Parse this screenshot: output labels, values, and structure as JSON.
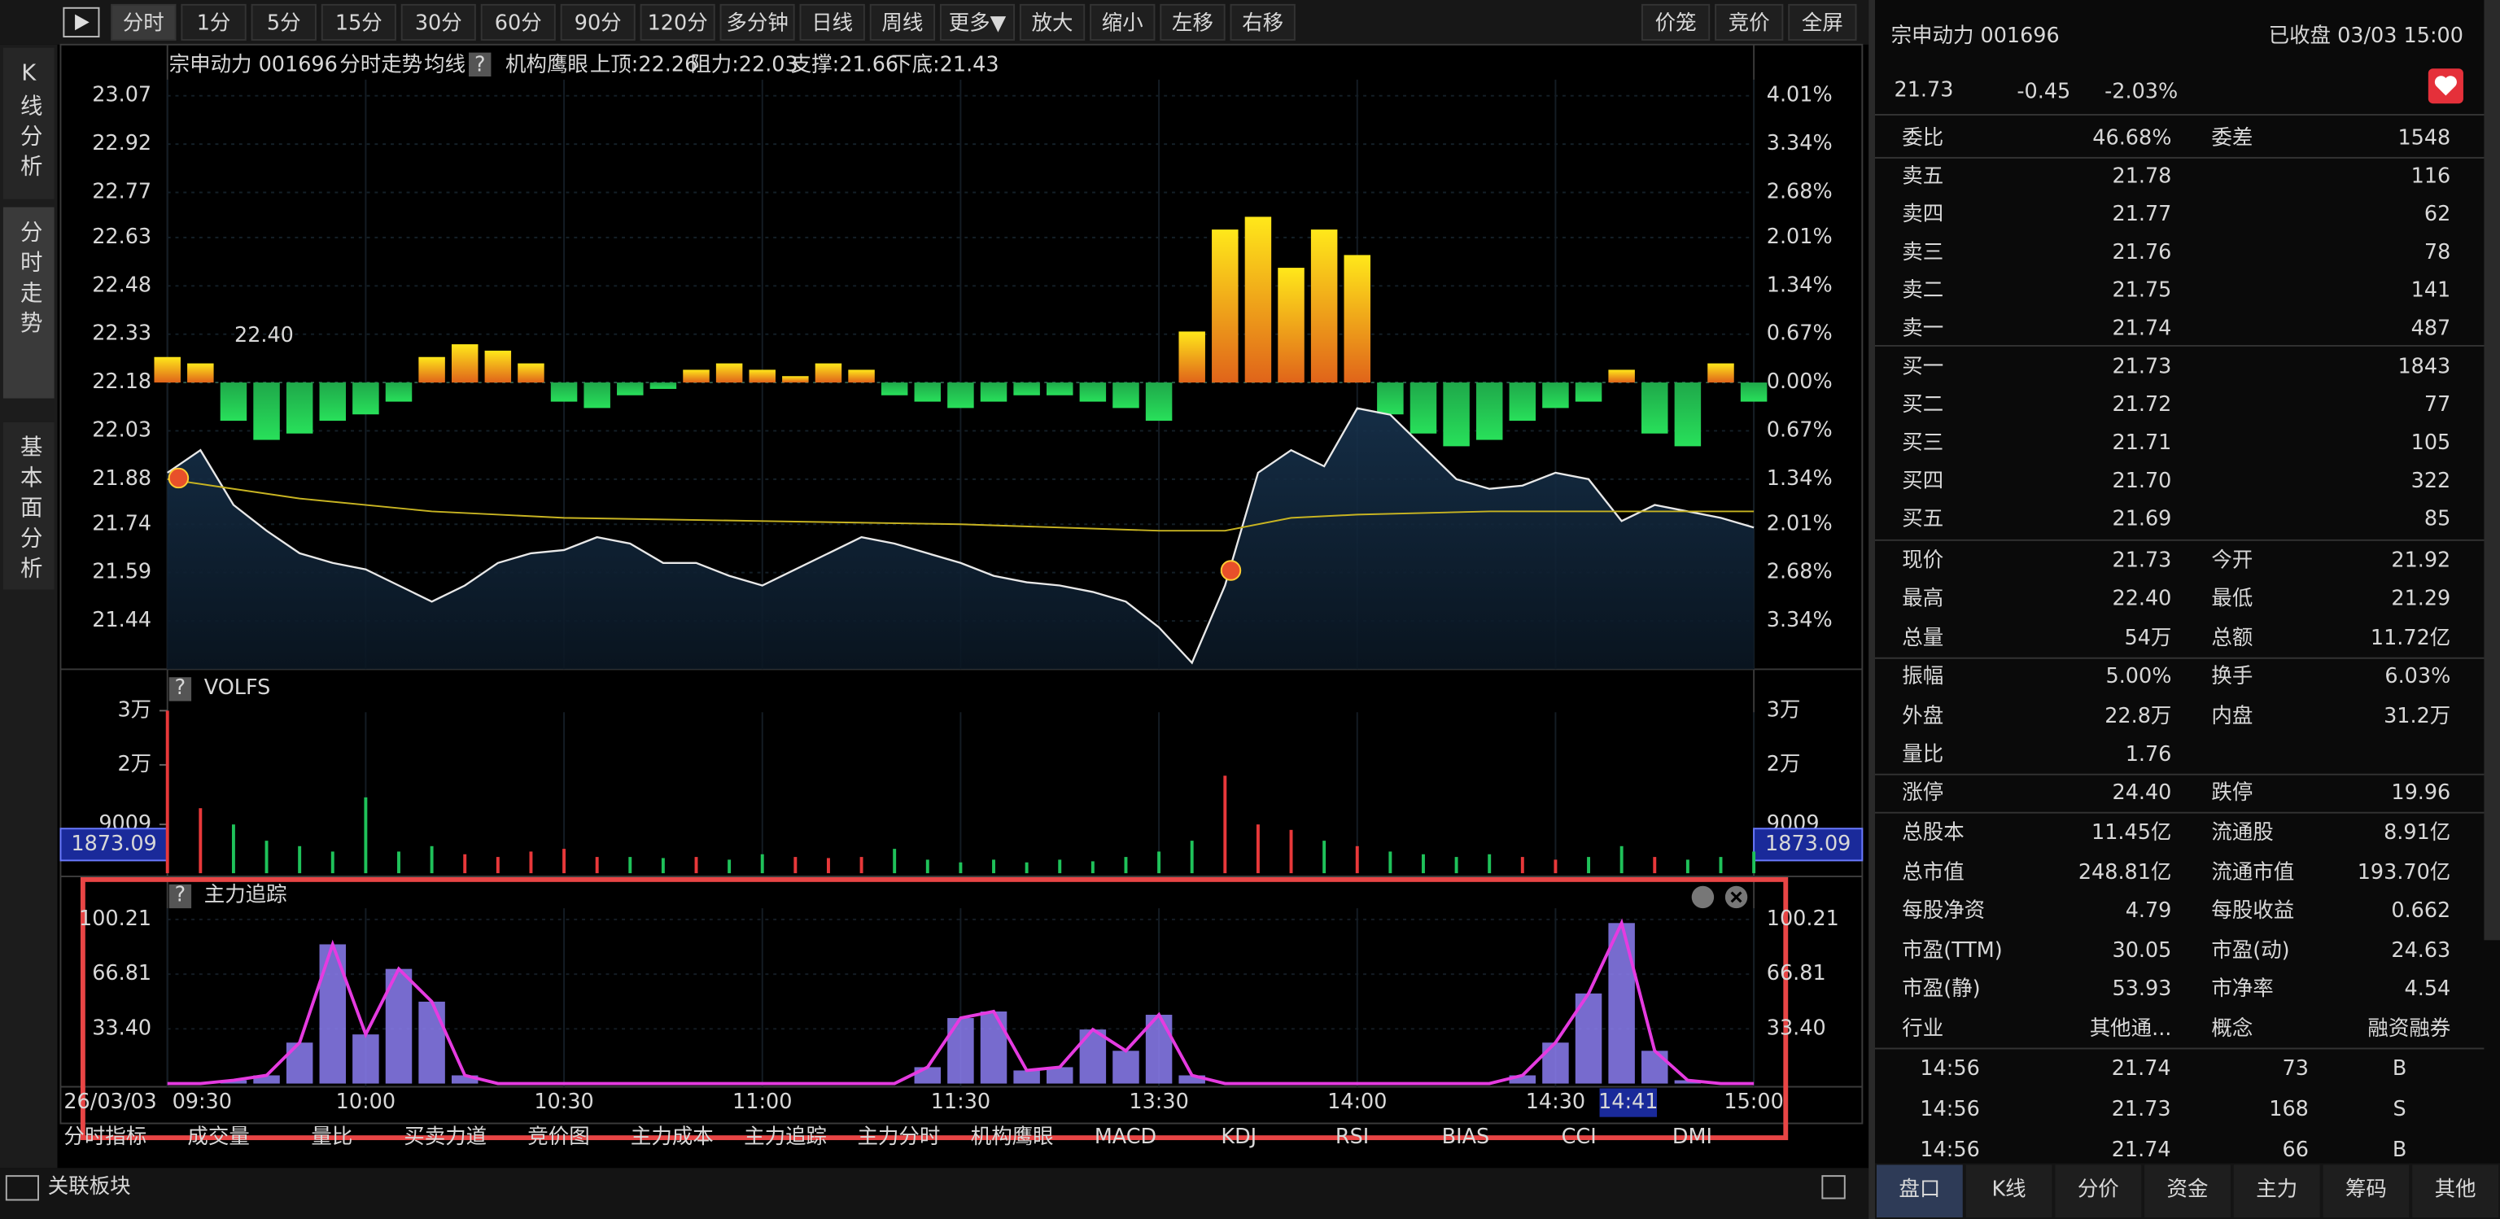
{
  "toolbar": {
    "buttons": [
      "分时",
      "1分",
      "5分",
      "15分",
      "30分",
      "60分",
      "90分",
      "120分",
      "多分钟",
      "日线",
      "周线",
      "更多▼",
      "放大",
      "缩小",
      "左移",
      "右移"
    ],
    "right_buttons": [
      "价笼",
      "竞价",
      "全屏"
    ]
  },
  "side_tabs": [
    "K线分析",
    "分时走势",
    "基本面分析"
  ],
  "chart_header": {
    "name": "宗申动力 001696",
    "mode": "分时走势",
    "ma": "均线",
    "help": "?",
    "eye": "机构鹰眼",
    "levels": [
      {
        "text": "上顶:22.26",
        "color": "#2fc24a"
      },
      {
        "text": "阻力:22.03",
        "color": "#29b6c8"
      },
      {
        "text": "支撑:21.66",
        "color": "#2fa58a"
      },
      {
        "text": "下底:21.43",
        "color": "#8a8a8a"
      }
    ]
  },
  "chart_data": {
    "type": "line",
    "xlim": [
      0,
      240
    ],
    "ylim": [
      21.29,
      23.12
    ],
    "yticks": [
      23.07,
      22.92,
      22.77,
      22.63,
      22.48,
      22.33,
      22.18,
      22.03,
      21.88,
      21.74,
      21.59,
      21.44
    ],
    "pct_ticks": [
      {
        "value": 4.01,
        "label": "4.01%"
      },
      {
        "value": 3.34,
        "label": "3.34%"
      },
      {
        "value": 2.68,
        "label": "2.68%"
      },
      {
        "value": 2.01,
        "label": "2.01%"
      },
      {
        "value": 1.34,
        "label": "1.34%"
      },
      {
        "value": 0.67,
        "label": "0.67%"
      },
      {
        "value": 0,
        "label": "0.00%"
      },
      {
        "value": -0.67,
        "label": "0.67%"
      },
      {
        "value": -1.34,
        "label": "1.34%"
      },
      {
        "value": -2.01,
        "label": "2.01%"
      },
      {
        "value": -2.68,
        "label": "2.68%"
      },
      {
        "value": -3.34,
        "label": "3.34%"
      }
    ],
    "x": [
      0,
      5,
      10,
      15,
      20,
      25,
      30,
      35,
      40,
      45,
      50,
      55,
      60,
      65,
      70,
      75,
      80,
      85,
      90,
      95,
      100,
      105,
      110,
      115,
      120,
      125,
      130,
      135,
      140,
      145,
      150,
      155,
      160,
      165,
      170,
      175,
      180,
      185,
      190,
      195,
      200,
      205,
      210,
      215,
      220,
      225,
      230,
      235,
      240
    ],
    "series": [
      {
        "name": "价格",
        "color": "#e8e8e8",
        "values": [
          21.9,
          21.97,
          21.8,
          21.72,
          21.65,
          21.62,
          21.6,
          21.55,
          21.5,
          21.55,
          21.62,
          21.65,
          21.66,
          21.7,
          21.68,
          21.62,
          21.62,
          21.58,
          21.55,
          21.6,
          21.65,
          21.7,
          21.68,
          21.65,
          21.62,
          21.58,
          21.56,
          21.55,
          21.53,
          21.5,
          21.42,
          21.31,
          21.55,
          21.9,
          21.97,
          21.92,
          22.1,
          22.08,
          21.98,
          21.88,
          21.85,
          21.86,
          21.9,
          21.88,
          21.75,
          21.8,
          21.78,
          21.76,
          21.73
        ]
      }
    ],
    "avg": {
      "color": "#c8b422",
      "x": [
        0,
        10,
        20,
        40,
        60,
        90,
        120,
        150,
        160,
        170,
        180,
        200,
        240
      ],
      "values": [
        21.88,
        21.85,
        21.82,
        21.78,
        21.76,
        21.75,
        21.74,
        21.72,
        21.72,
        21.76,
        21.77,
        21.78,
        21.78
      ]
    },
    "flow": [
      4,
      3,
      -6,
      -9,
      -8,
      -6,
      -5,
      -3,
      4,
      6,
      5,
      3,
      -3,
      -4,
      -2,
      -1,
      2,
      3,
      2,
      1,
      3,
      2,
      -2,
      -3,
      -4,
      -3,
      -2,
      -2,
      -3,
      -4,
      -6,
      8,
      24,
      26,
      18,
      24,
      20,
      -5,
      -8,
      -10,
      -9,
      -6,
      -4,
      -3,
      2,
      -8,
      -10,
      3,
      -3
    ],
    "annotation": "22.40",
    "time_labels": [
      {
        "value": 0,
        "label": "09:30"
      },
      {
        "value": 30,
        "label": "10:00"
      },
      {
        "value": 60,
        "label": "10:30"
      },
      {
        "value": 90,
        "label": "11:00"
      },
      {
        "value": 120,
        "label": "11:30"
      },
      {
        "value": 150,
        "label": "13:30"
      },
      {
        "value": 180,
        "label": "14:00"
      },
      {
        "value": 210,
        "label": "14:30"
      },
      {
        "value": 240,
        "label": "15:00"
      }
    ],
    "cursor": {
      "value": 221,
      "label": "14:41"
    },
    "date": "26/03/03"
  },
  "volume_panel": {
    "title": "VOLFS",
    "help": "?",
    "ylim": [
      0,
      30000
    ],
    "yticks": [
      {
        "value": 30000,
        "label": "3万"
      },
      {
        "value": 20000,
        "label": "2万"
      },
      9009
    ],
    "cursor_value": "1873.09",
    "values": [
      30000,
      12000,
      9000,
      6000,
      5000,
      4000,
      14000,
      4000,
      5000,
      3500,
      3000,
      4000,
      4500,
      3000,
      3000,
      2800,
      3000,
      2500,
      3500,
      3000,
      2800,
      3000,
      4500,
      2500,
      2000,
      2500,
      2000,
      2500,
      2200,
      3000,
      4000,
      6000,
      18000,
      9000,
      8000,
      6000,
      5000,
      4000,
      3500,
      3000,
      3500,
      3000,
      2500,
      3000,
      5000,
      3000,
      2500,
      3000,
      4000
    ]
  },
  "main_force_panel": {
    "title": "主力追踪",
    "help": "?",
    "ylim": [
      0,
      100.21
    ],
    "yticks": [
      100.21,
      66.81,
      {
        "value": 33.4,
        "label": "33.40"
      }
    ],
    "color": "#8c7ef2",
    "line_color": "#e53be0",
    "values": [
      0,
      0,
      2,
      5,
      25,
      85,
      30,
      70,
      50,
      5,
      0,
      0,
      0,
      0,
      0,
      0,
      0,
      0,
      0,
      0,
      0,
      0,
      0,
      10,
      40,
      44,
      8,
      10,
      33,
      20,
      42,
      5,
      0,
      0,
      0,
      0,
      0,
      0,
      0,
      0,
      0,
      5,
      25,
      55,
      98,
      20,
      2,
      0,
      0
    ]
  },
  "indicator_tabs": {
    "items": [
      "分时指标",
      "成交量",
      "量比",
      "买卖力道",
      "竞价图",
      "主力成本",
      "主力追踪",
      "主力分时",
      "机构鹰眼",
      "MACD",
      "KDJ",
      "RSI",
      "BIAS",
      "CCI",
      "DMI"
    ],
    "highlighted": [
      1,
      6,
      8
    ]
  },
  "bottom_bar": {
    "label": "关联板块"
  },
  "quote": {
    "title": "宗申动力 001696",
    "status": "已收盘 03/03 15:00",
    "price": "21.73",
    "change": "-0.45",
    "change_pct": "-2.03%",
    "summary": [
      [
        {
          "text": "委比"
        },
        {
          "text": "46.68%",
          "color": "#ff3b3b"
        },
        {
          "text": "委差"
        },
        {
          "text": "1548",
          "color": "#ff3b3b"
        }
      ]
    ],
    "order_book": [
      [
        {
          "text": "卖五"
        },
        {
          "text": "21.78",
          "color": "#19d45a"
        },
        {
          "text": "116"
        }
      ],
      [
        {
          "text": "卖四"
        },
        {
          "text": "21.77",
          "color": "#19d45a"
        },
        {
          "text": "62"
        }
      ],
      [
        {
          "text": "卖三"
        },
        {
          "text": "21.76",
          "color": "#19d45a"
        },
        {
          "text": "78"
        }
      ],
      [
        {
          "text": "卖二"
        },
        {
          "text": "21.75",
          "color": "#19d45a"
        },
        {
          "text": "141"
        }
      ],
      [
        {
          "text": "卖一"
        },
        {
          "text": "21.74",
          "color": "#19d45a"
        },
        {
          "text": "487"
        }
      ],
      [
        {
          "text": "买一"
        },
        {
          "text": "21.73",
          "color": "#19d45a"
        },
        {
          "text": "1843"
        }
      ],
      [
        {
          "text": "买二"
        },
        {
          "text": "21.72",
          "color": "#19d45a"
        },
        {
          "text": "77"
        }
      ],
      [
        {
          "text": "买三"
        },
        {
          "text": "21.71",
          "color": "#19d45a"
        },
        {
          "text": "105"
        }
      ],
      [
        {
          "text": "买四"
        },
        {
          "text": "21.70",
          "color": "#19d45a"
        },
        {
          "text": "322"
        }
      ],
      [
        {
          "text": "买五"
        },
        {
          "text": "21.69",
          "color": "#19d45a"
        },
        {
          "text": "85"
        }
      ]
    ],
    "stats": [
      [
        {
          "text": "现价"
        },
        {
          "text": "21.73",
          "color": "#19d45a"
        },
        {
          "text": "今开"
        },
        {
          "text": "21.92",
          "color": "#19d45a"
        }
      ],
      [
        {
          "text": "最高"
        },
        {
          "text": "22.40",
          "color": "#ff3b3b"
        },
        {
          "text": "最低"
        },
        {
          "text": "21.29",
          "color": "#19d45a"
        }
      ],
      [
        {
          "text": "总量"
        },
        {
          "text": "54万"
        },
        {
          "text": "总额"
        },
        {
          "text": "11.72亿"
        }
      ],
      [
        {
          "text": "振幅"
        },
        {
          "text": "5.00%",
          "color": "#ff3b3b"
        },
        {
          "text": "换手"
        },
        {
          "text": "6.03%"
        }
      ],
      [
        {
          "text": "外盘"
        },
        {
          "text": "22.8万",
          "color": "#ff3b3b"
        },
        {
          "text": "内盘"
        },
        {
          "text": "31.2万",
          "color": "#19d45a"
        }
      ],
      [
        {
          "text": "量比"
        },
        {
          "text": "1.76"
        }
      ],
      [
        {
          "text": "涨停"
        },
        {
          "text": "24.40",
          "color": "#ff3b3b"
        },
        {
          "text": "跌停"
        },
        {
          "text": "19.96",
          "color": "#19d45a"
        }
      ],
      [
        {
          "text": "总股本"
        },
        {
          "text": "11.45亿"
        },
        {
          "text": "流通股"
        },
        {
          "text": "8.91亿"
        }
      ],
      [
        {
          "text": "总市值"
        },
        {
          "text": "248.81亿"
        },
        {
          "text": "流通市值"
        },
        {
          "text": "193.70亿"
        }
      ],
      [
        {
          "text": "每股净资"
        },
        {
          "text": "4.79"
        },
        {
          "text": "每股收益"
        },
        {
          "text": "0.662"
        }
      ],
      [
        {
          "text": "市盈(TTM)"
        },
        {
          "text": "30.05"
        },
        {
          "text": "市盈(动)"
        },
        {
          "text": "24.63"
        }
      ],
      [
        {
          "text": "市盈(静)"
        },
        {
          "text": "53.93"
        },
        {
          "text": "市净率"
        },
        {
          "text": "4.54"
        }
      ],
      [
        {
          "text": "行业",
          "color": "#f0a020"
        },
        {
          "text": "其他通..."
        },
        {
          "text": "概念",
          "color": "#f0a020"
        },
        {
          "text": "融资融券"
        }
      ]
    ],
    "trades": [
      [
        {
          "text": "14:56"
        },
        {
          "text": "21.74",
          "color": "#19d45a"
        },
        {
          "text": "73"
        },
        {
          "text": "B",
          "color": "#ff3b3b"
        }
      ],
      [
        {
          "text": "14:56"
        },
        {
          "text": "21.73",
          "color": "#19d45a"
        },
        {
          "text": "168"
        },
        {
          "text": "S",
          "color": "#19d45a"
        }
      ],
      [
        {
          "text": "14:56"
        },
        {
          "text": "21.74",
          "color": "#19d45a"
        },
        {
          "text": "66"
        },
        {
          "text": "B",
          "color": "#ff3b3b"
        }
      ]
    ],
    "tabs": [
      "盘口",
      "K线",
      "分价",
      "资金",
      "主力",
      "筹码",
      "其他"
    ]
  }
}
